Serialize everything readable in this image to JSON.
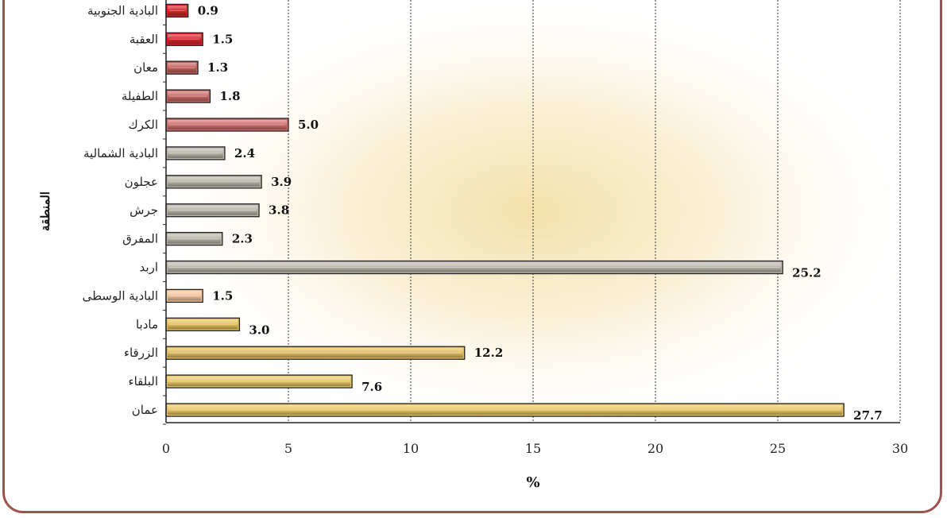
{
  "chart_data": {
    "type": "bar",
    "orientation": "horizontal",
    "categories": [
      "عمان",
      "البلقاء",
      "الزرقاء",
      "مادبا",
      "البادية الوسطى",
      "اربد",
      "المفرق",
      "جرش",
      "عجلون",
      "البادية الشمالية",
      "الكرك",
      "الطفيلة",
      "معان",
      "العقبة",
      "البادية الجنوبية"
    ],
    "values": [
      27.7,
      7.6,
      12.2,
      3.0,
      1.5,
      25.2,
      2.3,
      3.8,
      3.9,
      2.4,
      5.0,
      1.8,
      1.3,
      1.5,
      0.9
    ],
    "value_labels": [
      "27.7",
      "7.6",
      "12.2",
      "3.0",
      "1.5",
      "25.2",
      "2.3",
      "3.8",
      "3.9",
      "2.4",
      "5.0",
      "1.8",
      "1.3",
      "1.5",
      "0.9"
    ],
    "bar_colors": [
      "#e8c766",
      "#e8c766",
      "#e3bd62",
      "#e5c25c",
      "#f2c49a",
      "#b9b6aa",
      "#b9b6aa",
      "#b9b6aa",
      "#b9b6aa",
      "#b9b6aa",
      "#d06e6e",
      "#c96a66",
      "#c4605c",
      "#d8252a",
      "#d8252a"
    ],
    "xlabel": "%",
    "ylabel": "المنطقة",
    "xlim": [
      0,
      30
    ],
    "xticks": [
      0,
      5,
      10,
      15,
      20,
      25,
      30
    ],
    "grid": "vertical dashed",
    "legend": "none",
    "background": "radial beige glow"
  }
}
